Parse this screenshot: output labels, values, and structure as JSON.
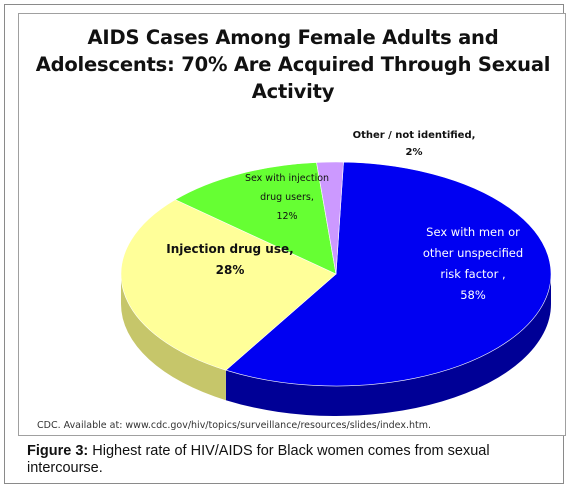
{
  "chart_data": {
    "type": "pie",
    "title": "AIDS Cases Among Female Adults and\nAdolescents: 70% Are Acquired Through Sexual\nActivity",
    "slices": [
      {
        "label": "Sex with men or\nother unspecified\nrisk factor ,\n58%",
        "value": 58,
        "color": "#0000f2",
        "side": "#000096"
      },
      {
        "label": "Injection drug use,\n28%",
        "value": 28,
        "color": "#ffff99",
        "side": "#c6c66a"
      },
      {
        "label": "Sex with injection\ndrug users,\n12%",
        "value": 12,
        "color": "#66ff33",
        "side": "#3fa61c"
      },
      {
        "label": "Other / not identified,\n2%",
        "value": 2,
        "color": "#cc99ff",
        "side": "#8c5cbf"
      }
    ],
    "start_angle_deg": -88,
    "three_d": true
  },
  "source": "CDC. Available at: www.cdc.gov/hiv/topics/surveillance/resources/slides/index.htm.",
  "caption": {
    "label": "Figure 3:",
    "text": " Highest rate of HIV/AIDS for Black women comes from sexual intercourse."
  }
}
